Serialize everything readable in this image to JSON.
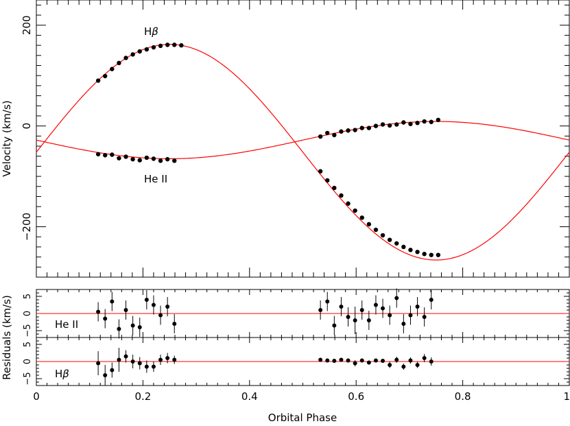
{
  "chart_data": [
    {
      "type": "scatter",
      "panel": "velocity",
      "xlim": [
        0,
        1
      ],
      "ylim": [
        -300,
        250
      ],
      "ylabel": "Velocity (km/s)",
      "xticks": [
        0,
        0.2,
        0.4,
        0.6,
        0.8,
        1
      ],
      "yticks": [
        -200,
        0,
        200
      ],
      "ytick_labels": [
        "−200",
        "0",
        "200"
      ],
      "grid": false,
      "annotations": [
        {
          "label": "Hβ",
          "x": 0.2,
          "y": 185
        },
        {
          "label": "He II",
          "x": 0.2,
          "y": -105
        }
      ],
      "series": [
        {
          "curve": {
            "gamma": -52,
            "K": 214,
            "phase_max": 0.25
          },
          "points": [
            [
              0.116,
              90
            ],
            [
              0.129,
              99
            ],
            [
              0.142,
              113
            ],
            [
              0.155,
              125
            ],
            [
              0.168,
              135
            ],
            [
              0.181,
              142
            ],
            [
              0.194,
              148
            ],
            [
              0.207,
              152
            ],
            [
              0.22,
              156
            ],
            [
              0.233,
              159
            ],
            [
              0.246,
              161
            ],
            [
              0.259,
              161
            ],
            [
              0.272,
              160
            ],
            [
              0.533,
              -90
            ],
            [
              0.546,
              -108
            ],
            [
              0.559,
              -123
            ],
            [
              0.572,
              -138
            ],
            [
              0.585,
              -154
            ],
            [
              0.598,
              -168
            ],
            [
              0.611,
              -182
            ],
            [
              0.624,
              -195
            ],
            [
              0.637,
              -206
            ],
            [
              0.65,
              -217
            ],
            [
              0.663,
              -226
            ],
            [
              0.676,
              -233
            ],
            [
              0.689,
              -240
            ],
            [
              0.702,
              -246
            ],
            [
              0.715,
              -250
            ],
            [
              0.728,
              -254
            ],
            [
              0.741,
              -256
            ],
            [
              0.754,
              -256
            ]
          ]
        },
        {
          "curve": {
            "gamma": -28,
            "K": 37,
            "phase_max": 0.75
          },
          "points": [
            [
              0.116,
              -56
            ],
            [
              0.129,
              -58
            ],
            [
              0.142,
              -57
            ],
            [
              0.155,
              -64
            ],
            [
              0.168,
              -61
            ],
            [
              0.181,
              -66
            ],
            [
              0.194,
              -68
            ],
            [
              0.207,
              -63
            ],
            [
              0.22,
              -65
            ],
            [
              0.233,
              -69
            ],
            [
              0.246,
              -66
            ],
            [
              0.259,
              -69
            ],
            [
              0.533,
              -21
            ],
            [
              0.546,
              -14
            ],
            [
              0.559,
              -18
            ],
            [
              0.572,
              -11
            ],
            [
              0.585,
              -9
            ],
            [
              0.598,
              -8
            ],
            [
              0.611,
              -4
            ],
            [
              0.624,
              -4
            ],
            [
              0.637,
              0
            ],
            [
              0.65,
              3
            ],
            [
              0.663,
              1
            ],
            [
              0.676,
              3
            ],
            [
              0.689,
              7
            ],
            [
              0.702,
              4
            ],
            [
              0.715,
              6
            ],
            [
              0.728,
              9
            ],
            [
              0.741,
              8
            ],
            [
              0.754,
              12
            ]
          ]
        }
      ]
    },
    {
      "type": "scatter",
      "panel": "residuals-he2",
      "xlim": [
        0,
        1
      ],
      "ylim": [
        -7,
        7
      ],
      "yticks": [
        -5,
        0,
        5
      ],
      "ytick_labels": [
        "−5",
        "0",
        "5"
      ],
      "label": "He II",
      "zero_line": 0,
      "points": [
        [
          0.116,
          0.5,
          2.8
        ],
        [
          0.129,
          -1.5,
          2.8
        ],
        [
          0.142,
          3.5,
          2.8
        ],
        [
          0.155,
          -4.5,
          2.8
        ],
        [
          0.168,
          1.0,
          2.8
        ],
        [
          0.181,
          -3.5,
          2.8
        ],
        [
          0.194,
          -4.0,
          2.8
        ],
        [
          0.207,
          4.0,
          2.8
        ],
        [
          0.22,
          2.5,
          2.8
        ],
        [
          0.233,
          -0.5,
          2.8
        ],
        [
          0.246,
          2.0,
          2.8
        ],
        [
          0.259,
          -3.0,
          2.8
        ],
        [
          0.533,
          1.0,
          2.8
        ],
        [
          0.546,
          3.5,
          2.8
        ],
        [
          0.559,
          -3.5,
          2.8
        ],
        [
          0.572,
          2.0,
          2.8
        ],
        [
          0.585,
          -1.0,
          2.8
        ],
        [
          0.598,
          -2.0,
          4.0
        ],
        [
          0.611,
          1.0,
          2.8
        ],
        [
          0.624,
          -2.0,
          2.8
        ],
        [
          0.637,
          2.5,
          2.8
        ],
        [
          0.65,
          1.5,
          2.8
        ],
        [
          0.663,
          -0.5,
          2.8
        ],
        [
          0.676,
          4.5,
          2.8
        ],
        [
          0.689,
          -3.0,
          2.8
        ],
        [
          0.702,
          -0.5,
          2.8
        ],
        [
          0.715,
          2.0,
          2.8
        ],
        [
          0.728,
          -1.0,
          2.8
        ],
        [
          0.741,
          4.0,
          2.8
        ]
      ]
    },
    {
      "type": "scatter",
      "panel": "residuals-hbeta",
      "xlim": [
        0,
        1
      ],
      "ylim": [
        -7,
        7
      ],
      "yticks": [
        -5,
        0,
        5
      ],
      "ytick_labels": [
        "−5",
        "0",
        "5"
      ],
      "label": "Hβ",
      "zero_line": 0,
      "xlabel": "Orbital Phase",
      "xtick_labels": [
        "0",
        "0.2",
        "0.4",
        "0.6",
        "0.8",
        "1"
      ],
      "points": [
        [
          0.116,
          -0.5,
          3.5
        ],
        [
          0.129,
          -4.0,
          3.0
        ],
        [
          0.142,
          -2.5,
          2.2
        ],
        [
          0.155,
          0.5,
          3.5
        ],
        [
          0.168,
          1.5,
          1.8
        ],
        [
          0.181,
          0.0,
          2.0
        ],
        [
          0.194,
          -0.5,
          1.8
        ],
        [
          0.207,
          -1.5,
          1.8
        ],
        [
          0.22,
          -1.5,
          1.5
        ],
        [
          0.233,
          0.5,
          1.5
        ],
        [
          0.246,
          1.0,
          1.5
        ],
        [
          0.259,
          0.5,
          1.2
        ],
        [
          0.533,
          0.5,
          0.6
        ],
        [
          0.546,
          0.3,
          0.6
        ],
        [
          0.559,
          0.2,
          0.6
        ],
        [
          0.572,
          0.5,
          0.6
        ],
        [
          0.585,
          0.3,
          0.6
        ],
        [
          0.598,
          -0.5,
          0.9
        ],
        [
          0.611,
          0.3,
          0.6
        ],
        [
          0.624,
          -0.3,
          0.6
        ],
        [
          0.637,
          0.3,
          0.6
        ],
        [
          0.65,
          0.2,
          0.6
        ],
        [
          0.663,
          -1.0,
          0.9
        ],
        [
          0.676,
          0.5,
          0.9
        ],
        [
          0.689,
          -1.5,
          0.9
        ],
        [
          0.702,
          0.3,
          0.9
        ],
        [
          0.715,
          -1.0,
          0.9
        ],
        [
          0.728,
          1.0,
          1.2
        ],
        [
          0.741,
          0.0,
          1.2
        ]
      ]
    }
  ],
  "shared": {
    "residuals_ylabel": "Residuals (km/s)",
    "model_color": "#ff0000",
    "point_color": "#000000"
  }
}
